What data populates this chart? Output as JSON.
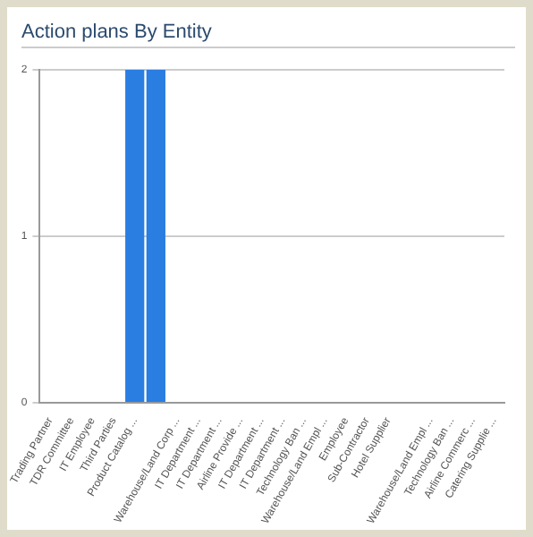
{
  "chart_data": {
    "type": "bar",
    "title": "Action plans By Entity",
    "categories": [
      "Trading Partner",
      "TDR Committee",
      "IT Employee",
      "Third Parties",
      "Product Catalog ...",
      null,
      "Warehouse/Land Corp ...",
      "IT Department ...",
      "IT Department ...",
      "Airline Provide ...",
      "IT Department ...",
      "IT Department ...",
      "Technology Ban ...",
      "Warehouse/Land Empl ...",
      "Employee",
      "Sub-Contractor",
      "Hotel Supplier",
      null,
      "Warehouse/Land Empl ...",
      "Technology Ban ...",
      "Airline Commerc ...",
      "Catering Supplie ..."
    ],
    "values": [
      0,
      0,
      0,
      0,
      2,
      2,
      0,
      0,
      0,
      0,
      0,
      0,
      0,
      0,
      0,
      0,
      0,
      0,
      0,
      0,
      0,
      0
    ],
    "color": "#2a7de1",
    "ylim": [
      0,
      2
    ],
    "yticks": [
      0,
      1,
      2
    ],
    "grid": "y",
    "legend": false
  }
}
